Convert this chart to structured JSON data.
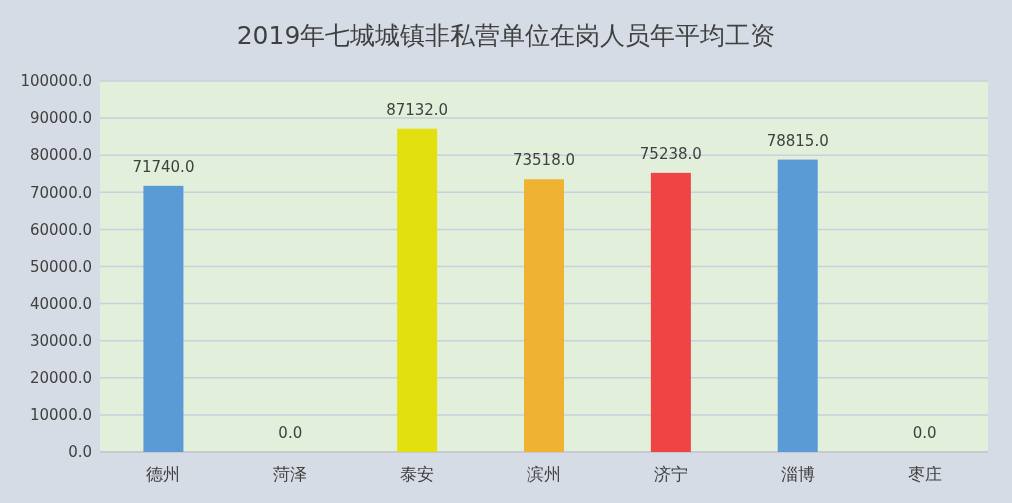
{
  "chart_data": {
    "type": "bar",
    "title": "2019年七城城镇非私营单位在岗人员年平均工资",
    "categories": [
      "德州",
      "菏泽",
      "泰安",
      "滨州",
      "济宁",
      "淄博",
      "枣庄"
    ],
    "values": [
      71740,
      0,
      87132,
      73518,
      75238,
      78815,
      0
    ],
    "value_labels": [
      "71740.0",
      "0.0",
      "87132.0",
      "73518.0",
      "75238.0",
      "78815.0",
      "0.0"
    ],
    "colors": [
      "#5b9bd5",
      "#5b9bd5",
      "#e3e010",
      "#f0b232",
      "#f04444",
      "#5b9bd5",
      "#5b9bd5"
    ],
    "ylim": [
      0,
      100000
    ],
    "yticks": [
      {
        "value": 0,
        "label": "0.0"
      },
      {
        "value": 10000,
        "label": "10000.0"
      },
      {
        "value": 20000,
        "label": "20000.0"
      },
      {
        "value": 30000,
        "label": "30000.0"
      },
      {
        "value": 40000,
        "label": "40000.0"
      },
      {
        "value": 50000,
        "label": "50000.0"
      },
      {
        "value": 60000,
        "label": "60000.0"
      },
      {
        "value": 70000,
        "label": "70000.0"
      },
      {
        "value": 80000,
        "label": "80000.0"
      },
      {
        "value": 90000,
        "label": "90000.0"
      },
      {
        "value": 100000,
        "label": "100000.0"
      }
    ],
    "grid": "y"
  }
}
